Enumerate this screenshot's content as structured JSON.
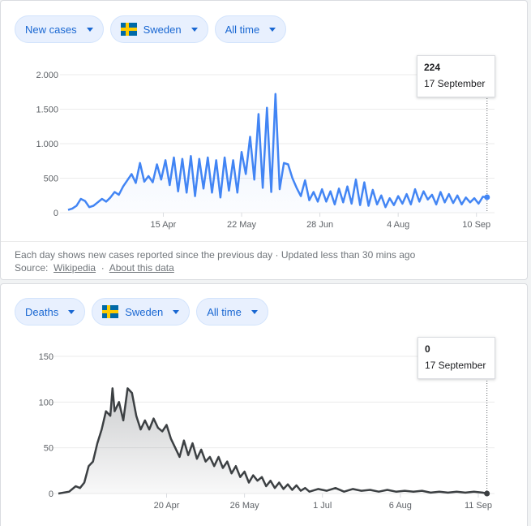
{
  "cases_card": {
    "metric_chip": "New cases",
    "country_chip": "Sweden",
    "range_chip": "All time",
    "tooltip": {
      "value": "224",
      "date": "17 September"
    },
    "footer": {
      "note": "Each day shows new cases reported since the previous day · Updated less than 30 mins ago",
      "source_label": "Source:",
      "source_link": "Wikipedia",
      "about_link": "About this data"
    }
  },
  "deaths_card": {
    "metric_chip": "Deaths",
    "country_chip": "Sweden",
    "range_chip": "All time",
    "tooltip": {
      "value": "0",
      "date": "17 September"
    }
  },
  "colors": {
    "cases_line": "#4285f4",
    "deaths_line": "#3c4043",
    "chip_text": "#1967d2"
  },
  "chart_data": [
    {
      "type": "line",
      "title": "New cases",
      "xlabel": "",
      "ylabel": "",
      "ylim": [
        0,
        2000
      ],
      "y_ticks": [
        0,
        500,
        1000,
        1500,
        2000
      ],
      "y_tick_labels": [
        "0",
        "500",
        "1.000",
        "1.500",
        "2.000"
      ],
      "x_ticks": [
        {
          "day": 45,
          "label": "15 Apr"
        },
        {
          "day": 82,
          "label": "22 May"
        },
        {
          "day": 119,
          "label": "28 Jun"
        },
        {
          "day": 156,
          "label": "4 Aug"
        },
        {
          "day": 193,
          "label": "10 Sep"
        }
      ],
      "x_range": [
        0,
        200
      ],
      "series": [
        {
          "name": "New cases",
          "points": [
            [
              0,
              40
            ],
            [
              2,
              60
            ],
            [
              4,
              100
            ],
            [
              6,
              200
            ],
            [
              8,
              170
            ],
            [
              10,
              80
            ],
            [
              12,
              100
            ],
            [
              14,
              150
            ],
            [
              16,
              200
            ],
            [
              18,
              160
            ],
            [
              20,
              220
            ],
            [
              22,
              300
            ],
            [
              24,
              260
            ],
            [
              26,
              380
            ],
            [
              28,
              470
            ],
            [
              30,
              560
            ],
            [
              32,
              430
            ],
            [
              34,
              720
            ],
            [
              36,
              450
            ],
            [
              38,
              530
            ],
            [
              40,
              440
            ],
            [
              42,
              700
            ],
            [
              44,
              480
            ],
            [
              46,
              760
            ],
            [
              48,
              400
            ],
            [
              50,
              800
            ],
            [
              52,
              310
            ],
            [
              54,
              780
            ],
            [
              56,
              290
            ],
            [
              58,
              820
            ],
            [
              60,
              240
            ],
            [
              62,
              780
            ],
            [
              64,
              350
            ],
            [
              66,
              800
            ],
            [
              68,
              290
            ],
            [
              70,
              760
            ],
            [
              72,
              220
            ],
            [
              74,
              800
            ],
            [
              76,
              320
            ],
            [
              78,
              760
            ],
            [
              80,
              290
            ],
            [
              82,
              880
            ],
            [
              84,
              560
            ],
            [
              86,
              1100
            ],
            [
              88,
              480
            ],
            [
              90,
              1430
            ],
            [
              92,
              360
            ],
            [
              94,
              1520
            ],
            [
              96,
              300
            ],
            [
              98,
              1720
            ],
            [
              100,
              340
            ],
            [
              102,
              720
            ],
            [
              104,
              700
            ],
            [
              106,
              500
            ],
            [
              108,
              360
            ],
            [
              110,
              240
            ],
            [
              112,
              470
            ],
            [
              114,
              180
            ],
            [
              116,
              300
            ],
            [
              118,
              160
            ],
            [
              120,
              340
            ],
            [
              122,
              160
            ],
            [
              124,
              310
            ],
            [
              126,
              120
            ],
            [
              128,
              350
            ],
            [
              130,
              150
            ],
            [
              132,
              380
            ],
            [
              134,
              130
            ],
            [
              136,
              480
            ],
            [
              138,
              110
            ],
            [
              140,
              440
            ],
            [
              142,
              100
            ],
            [
              144,
              330
            ],
            [
              146,
              120
            ],
            [
              148,
              250
            ],
            [
              150,
              80
            ],
            [
              152,
              210
            ],
            [
              154,
              110
            ],
            [
              156,
              240
            ],
            [
              158,
              130
            ],
            [
              160,
              270
            ],
            [
              162,
              120
            ],
            [
              164,
              340
            ],
            [
              166,
              160
            ],
            [
              168,
              310
            ],
            [
              170,
              190
            ],
            [
              172,
              260
            ],
            [
              174,
              120
            ],
            [
              176,
              300
            ],
            [
              178,
              150
            ],
            [
              180,
              270
            ],
            [
              182,
              140
            ],
            [
              184,
              250
            ],
            [
              186,
              120
            ],
            [
              188,
              220
            ],
            [
              190,
              150
            ],
            [
              192,
              210
            ],
            [
              194,
              130
            ],
            [
              196,
              230
            ],
            [
              198,
              224
            ]
          ]
        }
      ]
    },
    {
      "type": "area",
      "title": "Deaths",
      "xlabel": "",
      "ylabel": "",
      "ylim": [
        0,
        150
      ],
      "y_ticks": [
        0,
        50,
        100,
        150
      ],
      "y_tick_labels": [
        "0",
        "50",
        "100",
        "150"
      ],
      "x_ticks": [
        {
          "day": 50,
          "label": "20 Apr"
        },
        {
          "day": 86,
          "label": "26 May"
        },
        {
          "day": 122,
          "label": "1 Jul"
        },
        {
          "day": 158,
          "label": "6 Aug"
        },
        {
          "day": 194,
          "label": "11 Sep"
        }
      ],
      "x_range": [
        0,
        200
      ],
      "series": [
        {
          "name": "Deaths",
          "points": [
            [
              0,
              0
            ],
            [
              5,
              2
            ],
            [
              8,
              8
            ],
            [
              10,
              6
            ],
            [
              12,
              12
            ],
            [
              14,
              30
            ],
            [
              16,
              35
            ],
            [
              18,
              55
            ],
            [
              20,
              70
            ],
            [
              22,
              90
            ],
            [
              24,
              85
            ],
            [
              25,
              115
            ],
            [
              26,
              90
            ],
            [
              28,
              100
            ],
            [
              30,
              80
            ],
            [
              32,
              115
            ],
            [
              34,
              110
            ],
            [
              36,
              85
            ],
            [
              38,
              70
            ],
            [
              40,
              80
            ],
            [
              42,
              70
            ],
            [
              44,
              82
            ],
            [
              46,
              72
            ],
            [
              48,
              68
            ],
            [
              50,
              75
            ],
            [
              52,
              60
            ],
            [
              54,
              50
            ],
            [
              56,
              40
            ],
            [
              58,
              58
            ],
            [
              60,
              42
            ],
            [
              62,
              55
            ],
            [
              64,
              38
            ],
            [
              66,
              48
            ],
            [
              68,
              35
            ],
            [
              70,
              40
            ],
            [
              72,
              30
            ],
            [
              74,
              40
            ],
            [
              76,
              28
            ],
            [
              78,
              35
            ],
            [
              80,
              22
            ],
            [
              82,
              30
            ],
            [
              84,
              18
            ],
            [
              86,
              24
            ],
            [
              88,
              12
            ],
            [
              90,
              20
            ],
            [
              92,
              14
            ],
            [
              94,
              18
            ],
            [
              96,
              8
            ],
            [
              98,
              14
            ],
            [
              100,
              6
            ],
            [
              102,
              12
            ],
            [
              104,
              5
            ],
            [
              106,
              10
            ],
            [
              108,
              4
            ],
            [
              110,
              9
            ],
            [
              112,
              3
            ],
            [
              114,
              6
            ],
            [
              116,
              2
            ],
            [
              120,
              5
            ],
            [
              124,
              3
            ],
            [
              128,
              6
            ],
            [
              132,
              2
            ],
            [
              136,
              5
            ],
            [
              140,
              3
            ],
            [
              144,
              4
            ],
            [
              148,
              2
            ],
            [
              152,
              4
            ],
            [
              156,
              2
            ],
            [
              160,
              3
            ],
            [
              164,
              2
            ],
            [
              168,
              3
            ],
            [
              172,
              1
            ],
            [
              176,
              2
            ],
            [
              180,
              1
            ],
            [
              184,
              2
            ],
            [
              188,
              1
            ],
            [
              192,
              2
            ],
            [
              196,
              1
            ],
            [
              198,
              0
            ]
          ]
        }
      ]
    }
  ]
}
